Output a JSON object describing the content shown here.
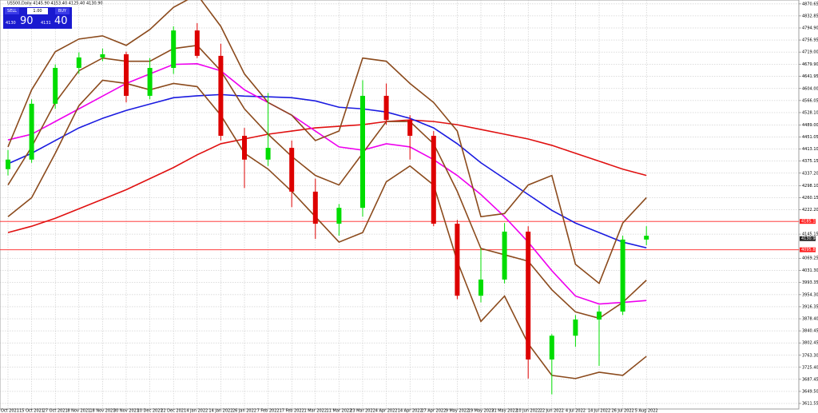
{
  "chart_data": {
    "type": "candlestick",
    "title": "US500,Daily  4145.90 4153.40 4125.40 4130.90",
    "categories": [
      "5 Oct 2021",
      "15 Oct 2021",
      "27 Oct 2021",
      "8 Nov 2021",
      "18 Nov 2021",
      "30 Nov 2021",
      "10 Dec 2021",
      "22 Dec 2021",
      "4 Jan 2022",
      "14 Jan 2022",
      "26 Jan 2022",
      "7 Feb 2022",
      "17 Feb 2022",
      "1 Mar 2022",
      "11 Mar 2022",
      "23 Mar 2022",
      "4 Apr 2022",
      "14 Apr 2022",
      "27 Apr 2022",
      "9 May 2022",
      "19 May 2022",
      "31 May 2022",
      "10 Jun 2022",
      "22 Jun 2022",
      "4 Jul 2022",
      "14 Jul 2022",
      "26 Jul 2022",
      "5 Aug 2022"
    ],
    "open": [
      4350,
      4380,
      4556,
      4669,
      4702,
      4712,
      4581,
      4669,
      4787,
      4707,
      4455,
      4380,
      4417,
      4279,
      4178,
      4228,
      4581,
      4505,
      4455,
      4178,
      3951,
      4002,
      4153,
      3750,
      3825,
      3876,
      3901,
      4128
    ],
    "high": [
      4410,
      4570,
      4680,
      4718,
      4730,
      4720,
      4700,
      4800,
      4810,
      4745,
      4480,
      4590,
      4440,
      4320,
      4240,
      4630,
      4620,
      4520,
      4470,
      4190,
      4100,
      4180,
      4170,
      3830,
      3890,
      3920,
      4140,
      4170
    ],
    "low": [
      4330,
      4370,
      4540,
      4650,
      4690,
      4560,
      4570,
      4650,
      4700,
      4440,
      4290,
      4360,
      4230,
      4130,
      4140,
      4200,
      4490,
      4380,
      4170,
      3940,
      3930,
      3990,
      3690,
      3640,
      3790,
      3730,
      3890,
      4110
    ],
    "close": [
      4380,
      4556,
      4669,
      4702,
      4712,
      4581,
      4669,
      4787,
      4707,
      4455,
      4380,
      4417,
      4279,
      4178,
      4228,
      4581,
      4505,
      4455,
      4178,
      3951,
      4002,
      4153,
      3750,
      3825,
      3876,
      3901,
      4128,
      4140
    ],
    "up_color": "#00dd00",
    "down_color": "#dd0000",
    "lines": [
      {
        "color": "#e01010",
        "values": [
          4150,
          4170,
          4195,
          4225,
          4255,
          4285,
          4320,
          4355,
          4395,
          4430,
          4445,
          4460,
          4470,
          4480,
          4485,
          4490,
          4500,
          4505,
          4500,
          4490,
          4475,
          4460,
          4445,
          4425,
          4400,
          4375,
          4350,
          4330
        ]
      },
      {
        "color": "#1a1ae0",
        "values": [
          4367,
          4400,
          4440,
          4480,
          4510,
          4535,
          4555,
          4575,
          4581,
          4585,
          4580,
          4578,
          4575,
          4565,
          4545,
          4540,
          4530,
          4510,
          4480,
          4430,
          4370,
          4320,
          4270,
          4220,
          4180,
          4150,
          4120,
          4102
        ]
      },
      {
        "color": "#ee00ee",
        "values": [
          4442,
          4460,
          4500,
          4540,
          4580,
          4620,
          4650,
          4680,
          4682,
          4660,
          4600,
          4560,
          4520,
          4470,
          4420,
          4410,
          4430,
          4420,
          4380,
          4330,
          4270,
          4200,
          4120,
          4030,
          3950,
          3925,
          3930,
          3936
        ]
      },
      {
        "color": "#8b4a1c",
        "values": [
          4420,
          4600,
          4720,
          4760,
          4770,
          4740,
          4790,
          4860,
          4900,
          4800,
          4650,
          4560,
          4520,
          4440,
          4470,
          4700,
          4690,
          4620,
          4560,
          4470,
          4200,
          4210,
          4300,
          4330,
          4050,
          3990,
          4180,
          4260
        ]
      },
      {
        "color": "#8b4a1c",
        "values": [
          4300,
          4420,
          4560,
          4660,
          4700,
          4690,
          4690,
          4730,
          4740,
          4660,
          4540,
          4460,
          4390,
          4330,
          4300,
          4400,
          4500,
          4500,
          4430,
          4280,
          4100,
          4080,
          4060,
          3970,
          3900,
          3880,
          3930,
          4000
        ]
      },
      {
        "color": "#8b4a1c",
        "values": [
          4200,
          4260,
          4400,
          4550,
          4630,
          4620,
          4600,
          4620,
          4610,
          4520,
          4400,
          4350,
          4280,
          4200,
          4120,
          4150,
          4310,
          4360,
          4300,
          4060,
          3870,
          3950,
          3800,
          3700,
          3690,
          3710,
          3700,
          3760
        ]
      }
    ],
    "levels": [
      {
        "value": 4185.19,
        "label": "4185.19",
        "color": "#ff2020"
      },
      {
        "value": 4095.83,
        "label": "4095.83",
        "color": "#ff2020"
      }
    ],
    "current_price": {
      "value": 4130.9,
      "label": "4130.90"
    },
    "ylim": [
      3594,
      4883
    ],
    "yticks": [
      4870.65,
      4832.85,
      {
        "value": 4794.9,
        "label": "4794.90"
      },
      4756.95,
      {
        "value": 4719,
        "label": "4719.00"
      },
      {
        "value": 4679.9,
        "label": "4679.90"
      },
      4641.95,
      {
        "value": 4604,
        "label": "4604.00"
      },
      4566.05,
      {
        "value": 4528.1,
        "label": "4528.10"
      },
      {
        "value": 4489,
        "label": "4489.00"
      },
      4451.05,
      {
        "value": 4413.1,
        "label": "4413.10"
      },
      4375.15,
      {
        "value": 4337.2,
        "label": "4337.20"
      },
      {
        "value": 4298.1,
        "label": "4298.10"
      },
      4260.15,
      {
        "value": 4222.2,
        "label": "4222.20"
      },
      4145.15,
      4069.25,
      {
        "value": 4031.3,
        "label": "4031.30"
      },
      3993.35,
      {
        "value": 3954.3,
        "label": "3954.30"
      },
      3916.35,
      {
        "value": 3878.4,
        "label": "3878.40"
      },
      3840.45,
      3802.45,
      {
        "value": 3763.3,
        "label": "3763.30"
      },
      {
        "value": 3725.4,
        "label": "3725.40"
      },
      3687.45,
      {
        "value": 3649.5,
        "label": "3649.50"
      },
      3611.55
    ],
    "grid": true
  },
  "trade_panel": {
    "sell": "SELL",
    "buy": "BUY",
    "volume": "1.00",
    "bid_small": "4130",
    "bid_big": "90",
    "ask_small": "4131",
    "ask_big": "40"
  }
}
